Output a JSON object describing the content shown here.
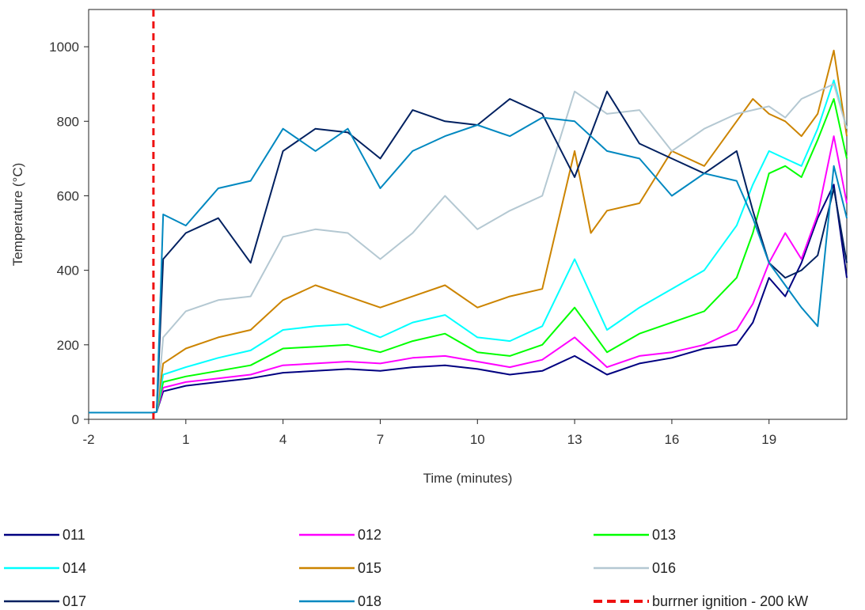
{
  "chart_data": {
    "type": "line",
    "title": "",
    "xlabel": "Time (minutes)",
    "ylabel": "Temperature (°C)",
    "xlim": [
      -2,
      21.4
    ],
    "ylim": [
      0,
      1100
    ],
    "xticks": [
      -2,
      1,
      4,
      7,
      10,
      13,
      16,
      19
    ],
    "yticks": [
      0,
      200,
      400,
      600,
      800,
      1000
    ],
    "grid": false,
    "legend": "bottom",
    "series": [
      {
        "name": "011",
        "color": "#000080",
        "x": [
          -2,
          0,
          0.1,
          0.3,
          1,
          2,
          3,
          4,
          5,
          6,
          7,
          8,
          9,
          10,
          11,
          12,
          13,
          14,
          15,
          16,
          17,
          18,
          18.5,
          19,
          19.5,
          20,
          20.5,
          21,
          21.4
        ],
        "y": [
          18,
          18,
          20,
          75,
          90,
          100,
          110,
          125,
          130,
          135,
          130,
          140,
          145,
          135,
          120,
          130,
          170,
          120,
          150,
          165,
          190,
          200,
          260,
          380,
          330,
          420,
          540,
          630,
          380
        ]
      },
      {
        "name": "012",
        "color": "#ff00ff",
        "x": [
          -2,
          0,
          0.1,
          0.3,
          1,
          2,
          3,
          4,
          5,
          6,
          7,
          8,
          9,
          10,
          11,
          12,
          13,
          14,
          15,
          16,
          17,
          18,
          18.5,
          19,
          19.5,
          20,
          20.5,
          21,
          21.4
        ],
        "y": [
          18,
          18,
          20,
          85,
          100,
          110,
          120,
          145,
          150,
          155,
          150,
          165,
          170,
          155,
          140,
          160,
          220,
          140,
          170,
          180,
          200,
          240,
          310,
          420,
          500,
          430,
          550,
          760,
          580
        ]
      },
      {
        "name": "013",
        "color": "#00ff00",
        "x": [
          -2,
          0,
          0.1,
          0.3,
          1,
          2,
          3,
          4,
          5,
          6,
          7,
          8,
          9,
          10,
          11,
          12,
          13,
          14,
          15,
          16,
          17,
          18,
          18.5,
          19,
          19.5,
          20,
          20.5,
          21,
          21.4
        ],
        "y": [
          18,
          18,
          20,
          100,
          115,
          130,
          145,
          190,
          195,
          200,
          180,
          210,
          230,
          180,
          170,
          200,
          300,
          180,
          230,
          260,
          290,
          380,
          500,
          660,
          680,
          650,
          750,
          860,
          700
        ]
      },
      {
        "name": "014",
        "color": "#00ffff",
        "x": [
          -2,
          0,
          0.1,
          0.3,
          1,
          2,
          3,
          4,
          5,
          6,
          7,
          8,
          9,
          10,
          11,
          12,
          13,
          14,
          15,
          16,
          17,
          18,
          18.5,
          19,
          19.5,
          20,
          20.5,
          21,
          21.4
        ],
        "y": [
          18,
          18,
          20,
          120,
          140,
          165,
          185,
          240,
          250,
          255,
          220,
          260,
          280,
          220,
          210,
          250,
          430,
          240,
          300,
          350,
          400,
          520,
          630,
          720,
          700,
          680,
          780,
          910,
          780
        ]
      },
      {
        "name": "015",
        "color": "#cc8400",
        "x": [
          -2,
          0,
          0.1,
          0.3,
          1,
          2,
          3,
          4,
          5,
          6,
          7,
          8,
          9,
          10,
          11,
          12,
          13,
          13.5,
          14,
          15,
          16,
          17,
          18,
          18.5,
          19,
          19.5,
          20,
          20.5,
          21,
          21.4
        ],
        "y": [
          18,
          18,
          20,
          150,
          190,
          220,
          240,
          320,
          360,
          330,
          300,
          330,
          360,
          300,
          330,
          350,
          720,
          500,
          560,
          580,
          720,
          680,
          800,
          860,
          820,
          800,
          760,
          820,
          990,
          760
        ]
      },
      {
        "name": "016",
        "color": "#b4c8d2",
        "x": [
          -2,
          0,
          0.1,
          0.3,
          1,
          2,
          3,
          4,
          5,
          6,
          7,
          8,
          9,
          10,
          11,
          12,
          13,
          14,
          15,
          16,
          17,
          18,
          18.5,
          19,
          19.5,
          20,
          20.5,
          21,
          21.4
        ],
        "y": [
          18,
          18,
          20,
          220,
          290,
          320,
          330,
          490,
          510,
          500,
          430,
          500,
          600,
          510,
          560,
          600,
          880,
          820,
          830,
          720,
          780,
          820,
          830,
          840,
          810,
          860,
          880,
          900,
          780
        ]
      },
      {
        "name": "017",
        "color": "#002060",
        "x": [
          -2,
          0,
          0.1,
          0.3,
          1,
          2,
          3,
          4,
          5,
          6,
          7,
          8,
          9,
          10,
          11,
          12,
          13,
          14,
          15,
          16,
          17,
          18,
          18.5,
          19,
          19.5,
          20,
          20.5,
          21,
          21.4
        ],
        "y": [
          18,
          18,
          20,
          430,
          500,
          540,
          420,
          720,
          780,
          770,
          700,
          830,
          800,
          790,
          860,
          820,
          650,
          880,
          740,
          700,
          660,
          720,
          560,
          420,
          380,
          400,
          440,
          620,
          420
        ]
      },
      {
        "name": "018",
        "color": "#0088c0",
        "x": [
          -2,
          0,
          0.1,
          0.3,
          1,
          2,
          3,
          4,
          5,
          6,
          7,
          8,
          9,
          10,
          11,
          12,
          13,
          14,
          15,
          16,
          17,
          18,
          18.5,
          19,
          19.5,
          20,
          20.5,
          21,
          21.4
        ],
        "y": [
          18,
          18,
          20,
          550,
          520,
          620,
          640,
          780,
          720,
          780,
          620,
          720,
          760,
          790,
          760,
          810,
          800,
          720,
          700,
          600,
          660,
          640,
          540,
          420,
          360,
          300,
          250,
          680,
          540
        ]
      }
    ],
    "annotations": [
      {
        "name": "burrner ignition - 200 kW",
        "type": "vline",
        "x": 0,
        "color": "#ee1111",
        "style": "dashed"
      }
    ]
  }
}
